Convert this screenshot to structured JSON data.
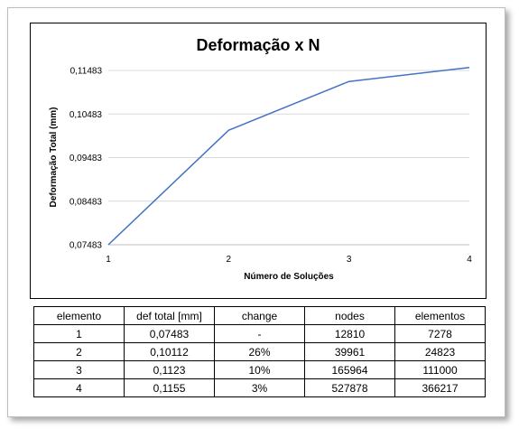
{
  "chart_data": {
    "type": "line",
    "title": "Deformação x N",
    "xlabel": "Número de Soluções",
    "ylabel": "Deformação Total (mm)",
    "x": [
      1,
      2,
      3,
      4
    ],
    "series": [
      {
        "values": [
          0.07483,
          0.10112,
          0.1123,
          0.1155
        ]
      }
    ],
    "xticks": [
      "1",
      "2",
      "3",
      "4"
    ],
    "yticks": [
      0.07483,
      0.08483,
      0.09483,
      0.10483,
      0.11483
    ],
    "ytick_labels": [
      "0,07483",
      "0,08483",
      "0,09483",
      "0,10483",
      "0,11483"
    ],
    "xlim": [
      1,
      4
    ],
    "ylim": [
      0.07483,
      0.11483
    ],
    "grid": "horizontal",
    "line_color": "#4472c4",
    "grid_color": "#d9d9d9"
  },
  "table": {
    "headers": [
      "elemento",
      "def total [mm]",
      "change",
      "nodes",
      "elementos"
    ],
    "rows": [
      [
        "1",
        "0,07483",
        "-",
        "12810",
        "7278"
      ],
      [
        "2",
        "0,10112",
        "26%",
        "39961",
        "24823"
      ],
      [
        "3",
        "0,1123",
        "10%",
        "165964",
        "111000"
      ],
      [
        "4",
        "0,1155",
        "3%",
        "527878",
        "366217"
      ]
    ]
  }
}
